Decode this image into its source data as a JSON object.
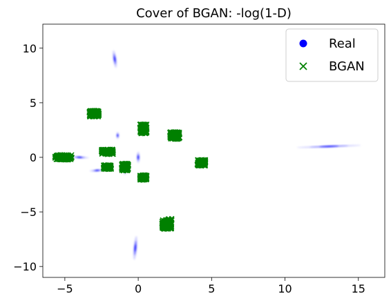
{
  "chart_data": {
    "type": "scatter",
    "title": "Cover of BGAN: -log(1-D)",
    "xlabel": "",
    "ylabel": "",
    "xlim": [
      -6.5,
      16.8
    ],
    "ylim": [
      -11,
      12.2
    ],
    "xticks": [
      -5,
      0,
      5,
      10,
      15
    ],
    "yticks": [
      -10,
      -5,
      0,
      5,
      10
    ],
    "xtick_labels": [
      "−5",
      "0",
      "5",
      "10",
      "15"
    ],
    "ytick_labels": [
      "−10",
      "−5",
      "0",
      "5",
      "10"
    ],
    "grid": false,
    "legend_position": "top-right",
    "series": [
      {
        "name": "Real",
        "marker": "circle",
        "color": "#0000ff",
        "note": "blurred elongated clusters",
        "clusters": [
          {
            "x": -1.6,
            "y": 9.0,
            "sx": 0.1,
            "sy": 0.7,
            "rot": 8
          },
          {
            "x": 13.0,
            "y": 1.0,
            "sx": 1.9,
            "sy": 0.07,
            "rot": 2
          },
          {
            "x": -4.0,
            "y": 0.0,
            "sx": 0.55,
            "sy": 0.08,
            "rot": -3
          },
          {
            "x": -2.8,
            "y": -1.2,
            "sx": 0.45,
            "sy": 0.08,
            "rot": 4
          },
          {
            "x": -1.4,
            "y": 2.0,
            "sx": 0.08,
            "sy": 0.28,
            "rot": 0
          },
          {
            "x": 0.0,
            "y": 0.0,
            "sx": 0.09,
            "sy": 0.45,
            "rot": 0
          },
          {
            "x": -0.9,
            "y": -1.1,
            "sx": 0.09,
            "sy": 0.45,
            "rot": 0
          },
          {
            "x": -0.2,
            "y": -8.3,
            "sx": 0.1,
            "sy": 0.95,
            "rot": -5
          }
        ]
      },
      {
        "name": "BGAN",
        "marker": "x",
        "color": "#008000",
        "clusters": [
          {
            "x": -5.1,
            "y": 0.0,
            "sx": 0.6,
            "sy": 0.25
          },
          {
            "x": -3.0,
            "y": 4.0,
            "sx": 0.35,
            "sy": 0.3
          },
          {
            "x": -2.1,
            "y": 0.5,
            "sx": 0.42,
            "sy": 0.25
          },
          {
            "x": -2.1,
            "y": -0.9,
            "sx": 0.28,
            "sy": 0.22
          },
          {
            "x": -0.9,
            "y": -0.9,
            "sx": 0.25,
            "sy": 0.35
          },
          {
            "x": 0.35,
            "y": 2.6,
            "sx": 0.25,
            "sy": 0.45
          },
          {
            "x": 0.35,
            "y": -1.85,
            "sx": 0.25,
            "sy": 0.25
          },
          {
            "x": 2.5,
            "y": 2.0,
            "sx": 0.35,
            "sy": 0.35
          },
          {
            "x": 4.3,
            "y": -0.5,
            "sx": 0.3,
            "sy": 0.3
          },
          {
            "x": 1.95,
            "y": -6.1,
            "sx": 0.35,
            "sy": 0.5
          }
        ]
      }
    ]
  }
}
